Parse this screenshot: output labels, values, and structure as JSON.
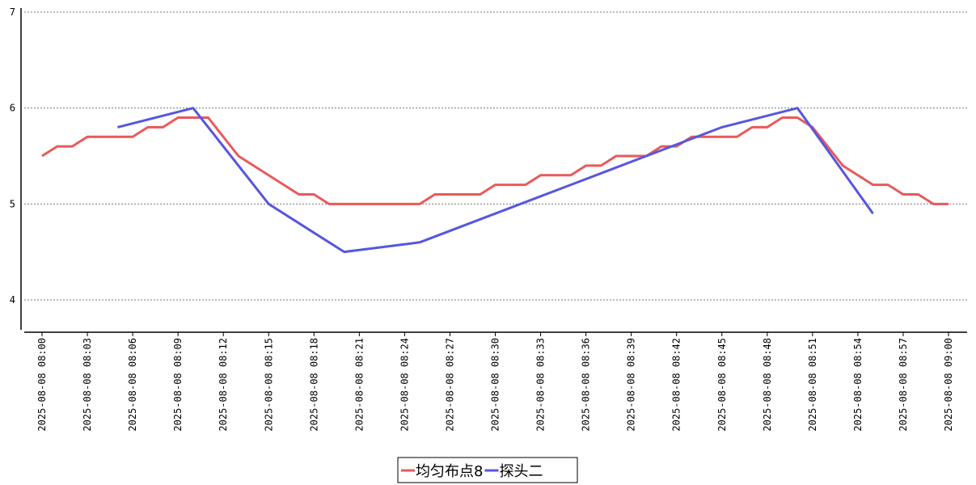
{
  "chart_data": {
    "type": "line",
    "title": "",
    "xlabel": "",
    "ylabel": "",
    "ylim": [
      3.7,
      7
    ],
    "y_ticks": [
      4,
      5,
      6,
      7
    ],
    "x_ticks": [
      "2025-08-08 08:00",
      "2025-08-08 08:03",
      "2025-08-08 08:06",
      "2025-08-08 08:09",
      "2025-08-08 08:12",
      "2025-08-08 08:15",
      "2025-08-08 08:18",
      "2025-08-08 08:21",
      "2025-08-08 08:24",
      "2025-08-08 08:27",
      "2025-08-08 08:30",
      "2025-08-08 08:33",
      "2025-08-08 08:36",
      "2025-08-08 08:39",
      "2025-08-08 08:42",
      "2025-08-08 08:45",
      "2025-08-08 08:48",
      "2025-08-08 08:51",
      "2025-08-08 08:54",
      "2025-08-08 08:57",
      "2025-08-08 09:00"
    ],
    "grid": "horizontal dotted",
    "legend_position": "bottom-center",
    "series": [
      {
        "name": "均匀布点8",
        "color": "#e85a5a",
        "points": [
          [
            "2025-08-08 08:00",
            5.5
          ],
          [
            "2025-08-08 08:01",
            5.6
          ],
          [
            "2025-08-08 08:02",
            5.6
          ],
          [
            "2025-08-08 08:03",
            5.7
          ],
          [
            "2025-08-08 08:04",
            5.7
          ],
          [
            "2025-08-08 08:05",
            5.7
          ],
          [
            "2025-08-08 08:06",
            5.7
          ],
          [
            "2025-08-08 08:07",
            5.8
          ],
          [
            "2025-08-08 08:08",
            5.8
          ],
          [
            "2025-08-08 08:09",
            5.9
          ],
          [
            "2025-08-08 08:10",
            5.9
          ],
          [
            "2025-08-08 08:11",
            5.9
          ],
          [
            "2025-08-08 08:13",
            5.5
          ],
          [
            "2025-08-08 08:15",
            5.3
          ],
          [
            "2025-08-08 08:17",
            5.1
          ],
          [
            "2025-08-08 08:18",
            5.1
          ],
          [
            "2025-08-08 08:19",
            5.0
          ],
          [
            "2025-08-08 08:20",
            5.0
          ],
          [
            "2025-08-08 08:21",
            5.0
          ],
          [
            "2025-08-08 08:22",
            5.0
          ],
          [
            "2025-08-08 08:23",
            5.0
          ],
          [
            "2025-08-08 08:24",
            5.0
          ],
          [
            "2025-08-08 08:25",
            5.0
          ],
          [
            "2025-08-08 08:26",
            5.1
          ],
          [
            "2025-08-08 08:27",
            5.1
          ],
          [
            "2025-08-08 08:28",
            5.1
          ],
          [
            "2025-08-08 08:29",
            5.1
          ],
          [
            "2025-08-08 08:30",
            5.2
          ],
          [
            "2025-08-08 08:31",
            5.2
          ],
          [
            "2025-08-08 08:32",
            5.2
          ],
          [
            "2025-08-08 08:33",
            5.3
          ],
          [
            "2025-08-08 08:34",
            5.3
          ],
          [
            "2025-08-08 08:35",
            5.3
          ],
          [
            "2025-08-08 08:36",
            5.4
          ],
          [
            "2025-08-08 08:37",
            5.4
          ],
          [
            "2025-08-08 08:38",
            5.5
          ],
          [
            "2025-08-08 08:39",
            5.5
          ],
          [
            "2025-08-08 08:40",
            5.5
          ],
          [
            "2025-08-08 08:41",
            5.6
          ],
          [
            "2025-08-08 08:42",
            5.6
          ],
          [
            "2025-08-08 08:43",
            5.7
          ],
          [
            "2025-08-08 08:44",
            5.7
          ],
          [
            "2025-08-08 08:45",
            5.7
          ],
          [
            "2025-08-08 08:46",
            5.7
          ],
          [
            "2025-08-08 08:47",
            5.8
          ],
          [
            "2025-08-08 08:48",
            5.8
          ],
          [
            "2025-08-08 08:49",
            5.9
          ],
          [
            "2025-08-08 08:50",
            5.9
          ],
          [
            "2025-08-08 08:51",
            5.8
          ],
          [
            "2025-08-08 08:53",
            5.4
          ],
          [
            "2025-08-08 08:55",
            5.2
          ],
          [
            "2025-08-08 08:56",
            5.2
          ],
          [
            "2025-08-08 08:57",
            5.1
          ],
          [
            "2025-08-08 08:58",
            5.1
          ],
          [
            "2025-08-08 08:59",
            5.0
          ],
          [
            "2025-08-08 09:00",
            5.0
          ]
        ]
      },
      {
        "name": "探头二",
        "color": "#5656e0",
        "points": [
          [
            "2025-08-08 08:05",
            5.8
          ],
          [
            "2025-08-08 08:10",
            6.0
          ],
          [
            "2025-08-08 08:15",
            5.0
          ],
          [
            "2025-08-08 08:20",
            4.5
          ],
          [
            "2025-08-08 08:25",
            4.6
          ],
          [
            "2025-08-08 08:30",
            4.9
          ],
          [
            "2025-08-08 08:35",
            5.2
          ],
          [
            "2025-08-08 08:40",
            5.5
          ],
          [
            "2025-08-08 08:45",
            5.8
          ],
          [
            "2025-08-08 08:50",
            6.0
          ],
          [
            "2025-08-08 08:55",
            4.9
          ]
        ]
      }
    ]
  }
}
